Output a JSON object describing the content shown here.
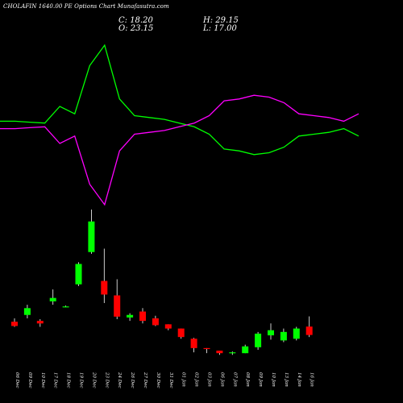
{
  "header": {
    "title": "CHOLAFIN 1640.00 PE Options Chart Munafasutra.com",
    "close_text": "C: 18.20",
    "open_text": "O: 23.15",
    "high_text": "H: 29.15",
    "low_text": "L: 17.00"
  },
  "chart_data": [
    {
      "type": "candlestick",
      "title": "CHOLAFIN 1640.00 PE Options Chart Munafasutra.com",
      "categories": [
        "06 Dec",
        "09 Dec",
        "10 Dec",
        "17 Dec",
        "18 Dec",
        "19 Dec",
        "20 Dec",
        "23 Dec",
        "24 Dec",
        "26 Dec",
        "27 Dec",
        "30 Dec",
        "31 Dec",
        "01 Jan",
        "02 Jan",
        "03 Jan",
        "06 Jan",
        "07 Jan",
        "08 Jan",
        "09 Jan",
        "10 Jan",
        "13 Jan",
        "14 Jan",
        "16 Jan"
      ],
      "series": [
        {
          "open": [
            26.0,
            30.0,
            26.5,
            38.0,
            35.0,
            48.0,
            67.0,
            50.0,
            41.5,
            28.5,
            32.0,
            28.0,
            24.5,
            22.0,
            16.0,
            10.5,
            9.0,
            7.5,
            7.5,
            11.0,
            18.0,
            15.0,
            16.0,
            23.15
          ],
          "high": [
            28.0,
            36.0,
            27.5,
            45.0,
            35.5,
            61.0,
            92.0,
            69.0,
            51.0,
            31.0,
            34.0,
            29.5,
            24.5,
            22.0,
            16.5,
            10.5,
            9.0,
            8.5,
            12.5,
            20.0,
            25.0,
            22.0,
            23.0,
            29.15
          ],
          "low": [
            23.0,
            28.0,
            23.0,
            36.0,
            34.5,
            47.0,
            66.0,
            37.0,
            27.5,
            26.5,
            25.0,
            23.5,
            21.0,
            16.0,
            8.0,
            7.5,
            6.5,
            6.5,
            7.5,
            9.5,
            15.5,
            14.0,
            15.0,
            17.0
          ],
          "close": [
            23.5,
            34.0,
            25.0,
            40.0,
            35.0,
            60.0,
            85.0,
            42.0,
            29.0,
            30.0,
            26.5,
            24.0,
            22.0,
            17.0,
            10.5,
            10.0,
            7.5,
            8.0,
            11.5,
            19.0,
            21.0,
            20.0,
            22.0,
            18.2
          ]
        }
      ],
      "colors": {
        "up": "#00ff00",
        "down": "#ff0000",
        "wick": "#ffffff"
      }
    },
    {
      "type": "line",
      "series": [
        {
          "values": [
            52,
            52,
            51.5,
            51,
            60,
            56,
            82,
            93,
            64,
            55,
            54,
            53,
            51,
            49,
            45,
            37,
            36,
            34,
            35,
            38,
            44,
            45,
            46,
            48,
            44
          ],
          "color": "#00ff00"
        },
        {
          "values": [
            48,
            48,
            48.5,
            49,
            40,
            44,
            18,
            7,
            36,
            45,
            46,
            47,
            49,
            51,
            55,
            63,
            64,
            66,
            65,
            62,
            56,
            55,
            54,
            52,
            56
          ],
          "color": "#ff00ff"
        }
      ],
      "ylim": [
        0,
        100
      ]
    }
  ]
}
